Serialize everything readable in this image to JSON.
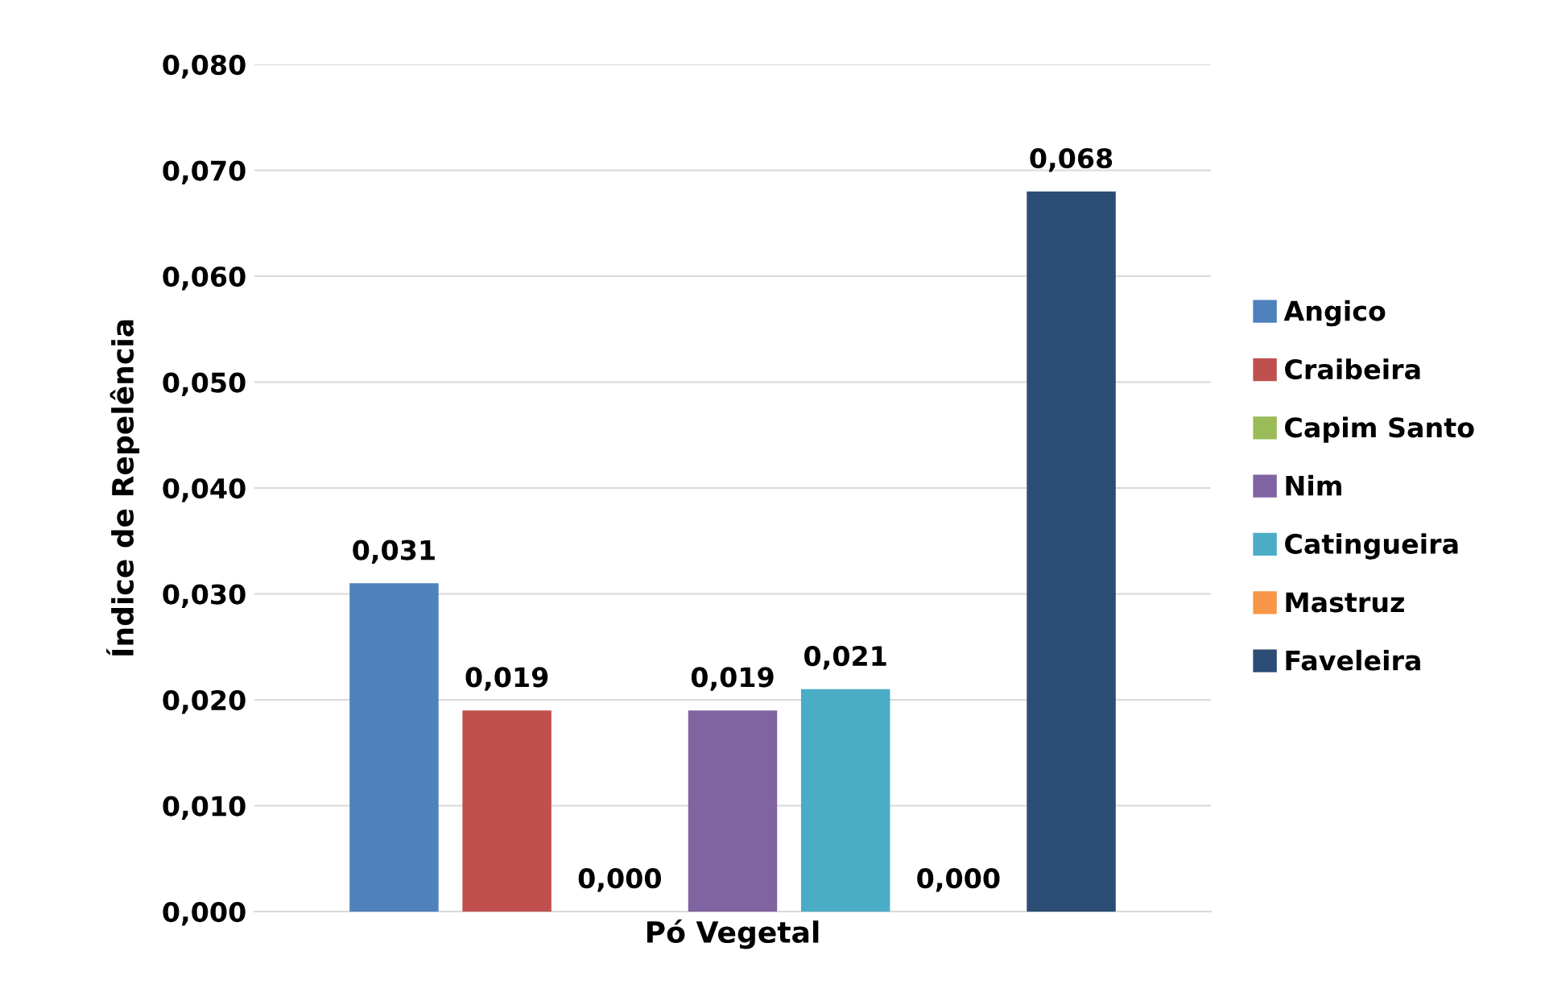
{
  "chart_data": {
    "type": "bar",
    "ylabel": "Índice de Repelência",
    "categories": [
      "Pó Vegetal"
    ],
    "series": [
      {
        "name": "Angico",
        "color": "#4f81bd",
        "values": [
          0.031
        ]
      },
      {
        "name": "Craibeira",
        "color": "#c0504d",
        "values": [
          0.019
        ]
      },
      {
        "name": "Capim Santo",
        "color": "#9bbb59",
        "values": [
          0.0
        ]
      },
      {
        "name": "Nim",
        "color": "#8064a2",
        "values": [
          0.019
        ]
      },
      {
        "name": "Catingueira",
        "color": "#4bacc6",
        "values": [
          0.021
        ]
      },
      {
        "name": "Mastruz",
        "color": "#f79646",
        "values": [
          0.0
        ]
      },
      {
        "name": "Faveleira",
        "color": "#2c4d75",
        "values": [
          0.068
        ]
      }
    ],
    "ylim": [
      0,
      0.08
    ],
    "yticks": [
      {
        "value": 0,
        "label": "0,000"
      },
      {
        "value": 0.01,
        "label": "0,010"
      },
      {
        "value": 0.02,
        "label": "0,020"
      },
      {
        "value": 0.03,
        "label": "0,030"
      },
      {
        "value": 0.04,
        "label": "0,040"
      },
      {
        "value": 0.05,
        "label": "0,050"
      },
      {
        "value": 0.06,
        "label": "0,060"
      },
      {
        "value": 0.07,
        "label": "0,070"
      },
      {
        "value": 0.08,
        "label": "0,080"
      }
    ],
    "value_labels": [
      [
        "0,031"
      ],
      [
        "0,019"
      ],
      [
        "0,000"
      ],
      [
        "0,019"
      ],
      [
        "0,021"
      ],
      [
        "0,000"
      ],
      [
        "0,068"
      ]
    ],
    "grid": "y",
    "legend": "right"
  }
}
